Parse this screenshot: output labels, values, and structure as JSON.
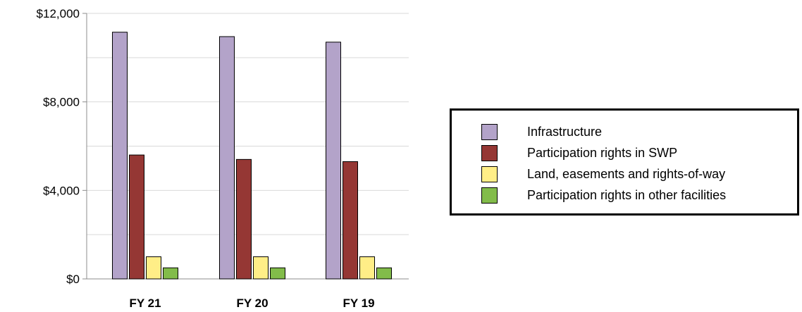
{
  "chart_data": {
    "type": "bar",
    "categories": [
      "FY 21",
      "FY 20",
      "FY 19"
    ],
    "series": [
      {
        "name": "Infrastructure",
        "color": "#b3a3c9",
        "values": [
          11150,
          10950,
          10700
        ]
      },
      {
        "name": "Participation rights in SWP",
        "color": "#953734",
        "values": [
          5600,
          5400,
          5300
        ]
      },
      {
        "name": "Land, easements and rights-of-way",
        "color": "#ffee87",
        "values": [
          1000,
          1000,
          1000
        ]
      },
      {
        "name": "Participation rights in other facilities",
        "color": "#82bc4a",
        "values": [
          500,
          500,
          500
        ]
      }
    ],
    "y_ticks": [
      "$0",
      "$4,000",
      "$8,000",
      "$12,000"
    ],
    "y_tick_values": [
      0,
      4000,
      8000,
      12000
    ],
    "ylim": [
      0,
      12000
    ],
    "grid": true,
    "legend_position": "right"
  }
}
